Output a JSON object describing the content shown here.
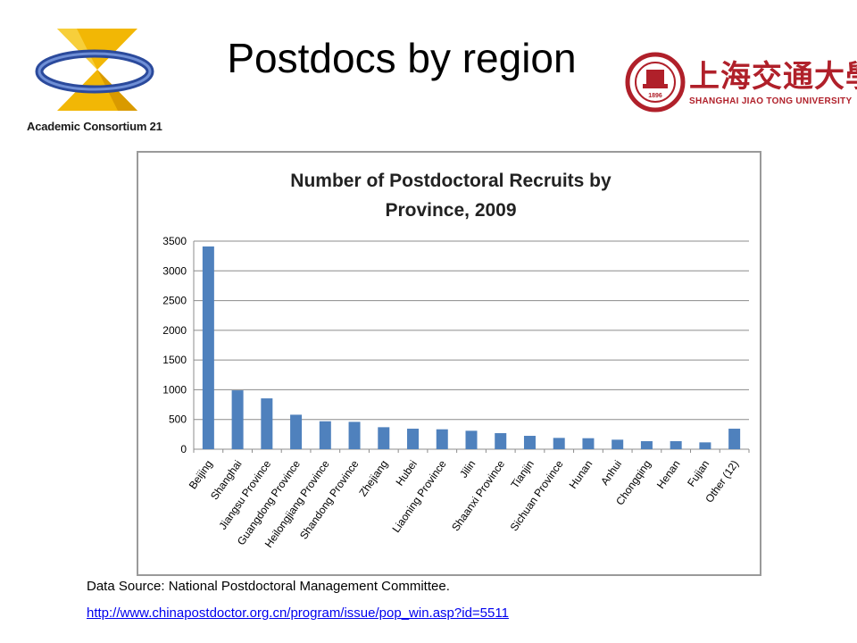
{
  "slide": {
    "title": "Postdocs by region"
  },
  "logos": {
    "left_caption": "Academic Consortium 21",
    "right_chinese": "上海交通大學",
    "right_english": "SHANGHAI JIAO TONG UNIVERSITY",
    "right_seal_year": "1896"
  },
  "chart_data": {
    "type": "bar",
    "title": "Number of Postdoctoral Recruits by Province, 2009",
    "title_lines": [
      "Number of Postdoctoral Recruits by",
      "Province, 2009"
    ],
    "categories": [
      "Beijing",
      "Shanghai",
      "Jiangsu Province",
      "Guangdong Province",
      "Heilongjiang Province",
      "Shandong Province",
      "Zhejiang",
      "Hubei",
      "Liaoning Province",
      "Jilin",
      "Shaanxi Province",
      "Tianjin",
      "Sichuan Province",
      "Hunan",
      "Anhui",
      "Chongqing",
      "Henan",
      "Fujian",
      "Other (12)"
    ],
    "values": [
      3410,
      990,
      855,
      580,
      470,
      460,
      370,
      345,
      335,
      310,
      270,
      225,
      190,
      185,
      160,
      135,
      135,
      115,
      345
    ],
    "ylim": [
      0,
      3500
    ],
    "yticks": [
      0,
      500,
      1000,
      1500,
      2000,
      2500,
      3000,
      3500
    ],
    "grid": true,
    "bar_color": "#4f81bd",
    "legend": "none"
  },
  "source": {
    "text": "Data Source: National Postdoctoral Management Committee.",
    "link": "http://www.chinapostdoctor.org.cn/program/issue/pop_win.asp?id=5511"
  },
  "colors": {
    "logo_red": "#b0202a",
    "link_blue": "#0000ee"
  }
}
